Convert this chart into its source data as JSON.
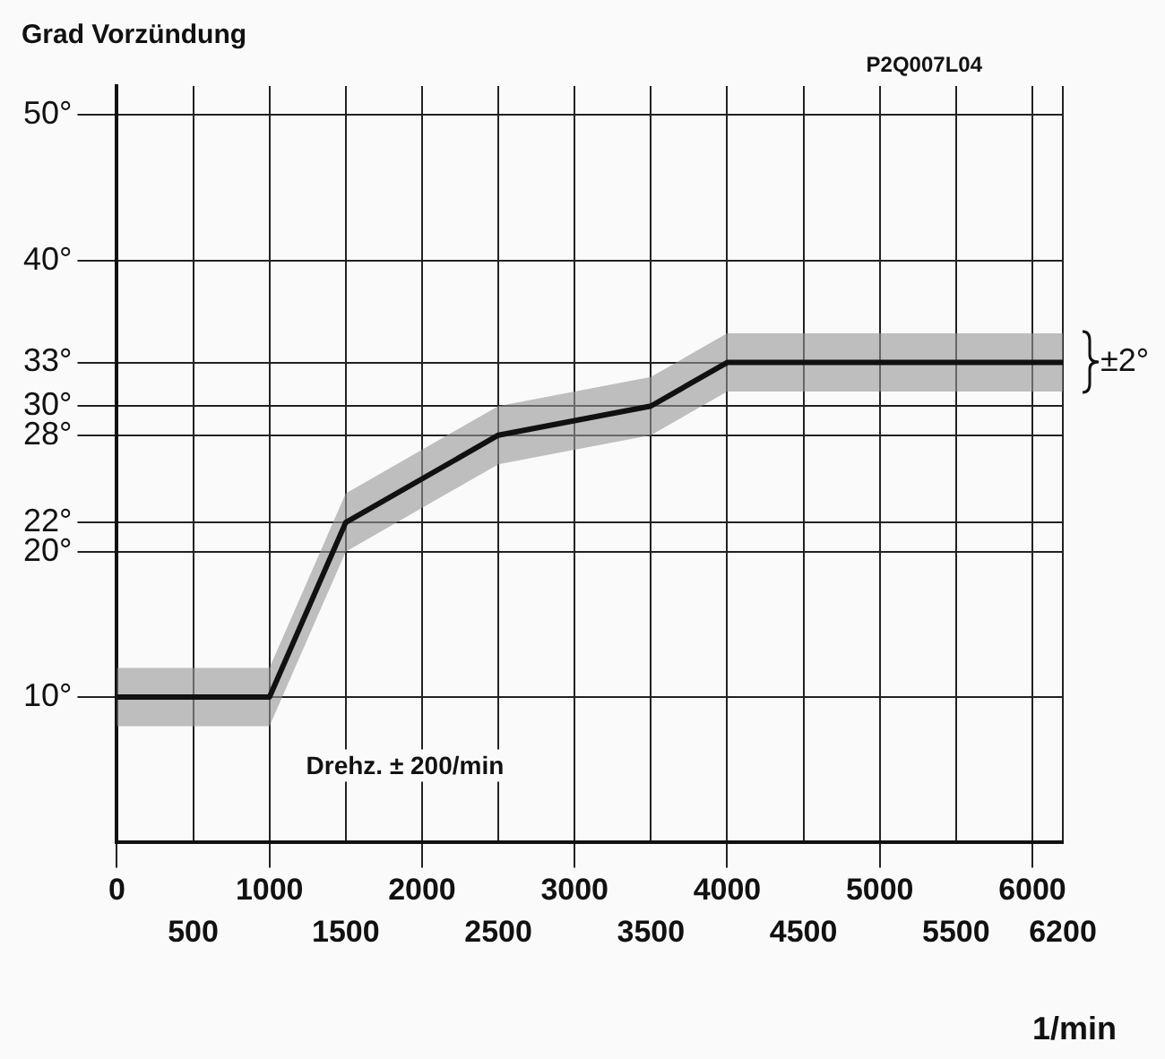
{
  "chart_data": {
    "type": "line",
    "ylabel": "Grad Vorzündung",
    "xlabel": "1/min",
    "annotations": [
      "P2Q007L04",
      "Drehz. ± 200/min",
      {
        "text": "±2°",
        "x": 6200,
        "y": 33
      }
    ],
    "x": [
      0,
      1000,
      1500,
      2500,
      3500,
      4000,
      6200
    ],
    "series": [
      {
        "color": "#111111",
        "values": [
          10,
          10,
          22,
          28,
          30,
          33,
          33
        ],
        "lower": [
          8,
          8,
          20,
          26,
          28,
          31,
          31
        ],
        "upper": [
          12,
          12,
          24,
          30,
          32,
          35,
          35
        ]
      }
    ],
    "xlim": [
      0,
      6200
    ],
    "xticks": [
      0,
      1000,
      2000,
      3000,
      4000,
      5000,
      6000
    ],
    "x2lim": [
      0,
      6200
    ],
    "x2ticks": [
      500,
      1500,
      2500,
      3500,
      4500,
      5500,
      6200
    ],
    "ylim": [
      0,
      52
    ],
    "yticks": [
      {
        "value": 10,
        "label": "10°"
      },
      {
        "value": 20,
        "label": "20°"
      },
      {
        "value": 22,
        "label": "22°"
      },
      {
        "value": 28,
        "label": "28°"
      },
      {
        "value": 30,
        "label": "30°"
      },
      {
        "value": 33,
        "label": "33°"
      },
      {
        "value": 40,
        "label": "40°"
      },
      {
        "value": 50,
        "label": "50°"
      }
    ],
    "grid": true,
    "marker": "none",
    "line_style": "solid"
  }
}
